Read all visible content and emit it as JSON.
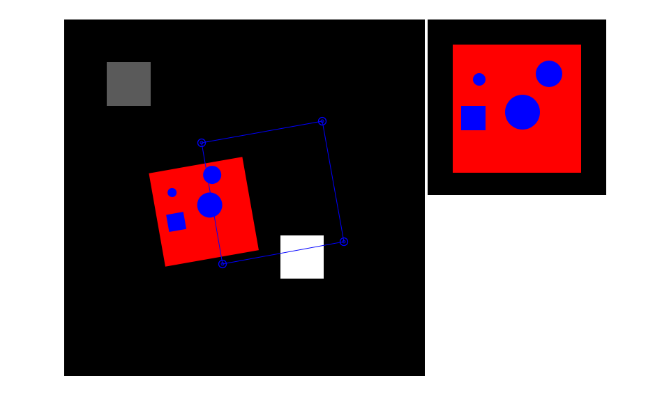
{
  "colors": {
    "canvas_background": "#000000",
    "page_background": "#ffffff",
    "gray_patch": "#5a5a5a",
    "white_patch": "#ffffff",
    "card_fill": "#ff0000",
    "shape_fill": "#0000ff",
    "selection_outline": "#0000ff"
  },
  "icons": {
    "corner_handle": "circle-handle-icon"
  }
}
